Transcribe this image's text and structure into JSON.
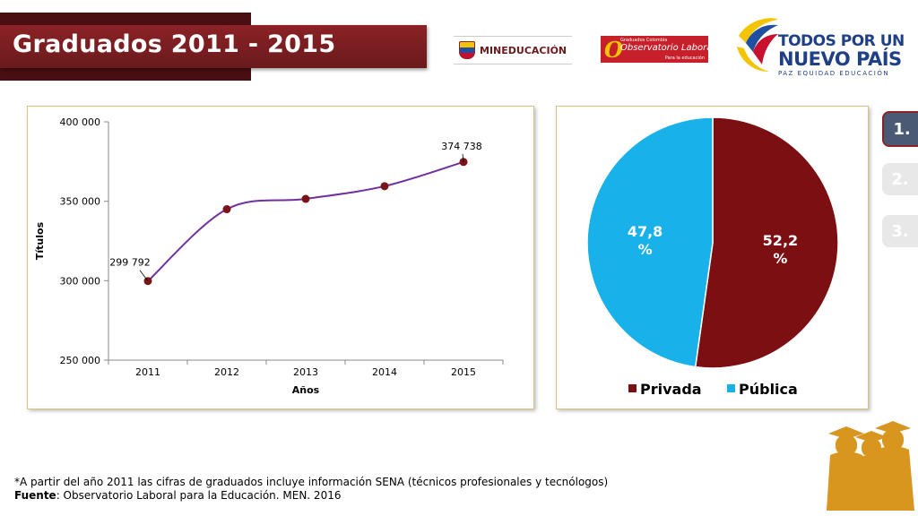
{
  "header": {
    "title": "Graduados 2011 - 2015",
    "logo_mineducacion": "MINEDUCACIÓN",
    "logo_observatorio_line1": "Graduados Colombia",
    "logo_observatorio_line2": "Observatorio Laboral",
    "logo_observatorio_line3": "Para la educación",
    "logo_tpp_line1": "TODOS POR UN",
    "logo_tpp_line2": "NUEVO PAÍS",
    "logo_tpp_line3": "PAZ  EQUIDAD  EDUCACIÓN"
  },
  "nav": {
    "items": [
      {
        "label": "1.",
        "active": true
      },
      {
        "label": "2.",
        "active": false
      },
      {
        "label": "3.",
        "active": false
      }
    ]
  },
  "footer": {
    "note": "*A partir del año 2011 las cifras de graduados incluye información SENA (técnicos profesionales y tecnólogos)",
    "source_label": "Fuente",
    "source_text": ": Observatorio Laboral para la Educación. MEN. 2016"
  },
  "chart_data": [
    {
      "type": "line",
      "title": "",
      "xlabel": "Años",
      "ylabel": "Títulos",
      "x": [
        "2011",
        "2012",
        "2013",
        "2014",
        "2015"
      ],
      "values": [
        299792,
        345000,
        351500,
        359500,
        374738
      ],
      "data_labels": [
        {
          "index": 0,
          "text": "299 792"
        },
        {
          "index": 4,
          "text": "374 738"
        }
      ],
      "ylim": [
        250000,
        400000
      ],
      "yticks": [
        250000,
        300000,
        350000,
        400000
      ],
      "ytick_labels": [
        "250 000",
        "300 000",
        "350 000",
        "400 000"
      ],
      "line_color": "#7030a0",
      "marker_color": "#7b1418",
      "grid": false,
      "legend": "none"
    },
    {
      "type": "pie",
      "slices": [
        {
          "name": "Privada",
          "value": 52.2,
          "label": "52,2",
          "unit": "%",
          "color": "#7b0f12"
        },
        {
          "name": "Pública",
          "value": 47.8,
          "label": "47,8",
          "unit": "%",
          "color": "#19b1ea"
        }
      ],
      "legend": "bottom"
    }
  ]
}
